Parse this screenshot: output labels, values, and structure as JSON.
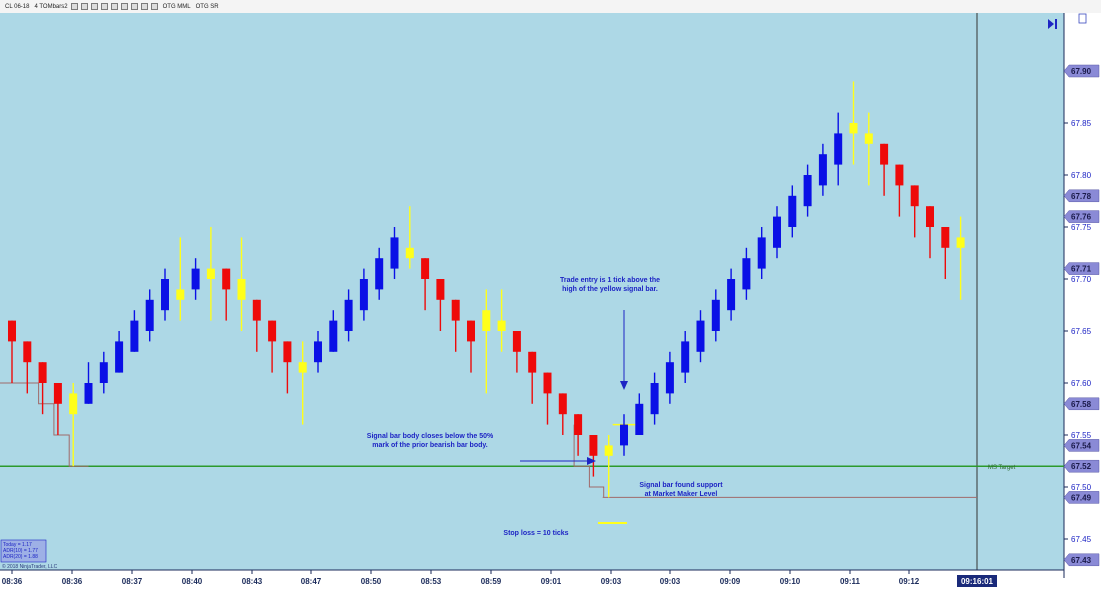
{
  "toolbar": {
    "instrument": "CL 06-18",
    "bar_type": "4 TOMbars2",
    "buttons": [
      "OTG MML",
      "OTG SR"
    ]
  },
  "chart_data": {
    "type": "candlestick",
    "title": "",
    "x_labels": [
      "08:36",
      "08:36",
      "08:37",
      "08:40",
      "08:43",
      "08:47",
      "08:50",
      "08:53",
      "08:59",
      "09:01",
      "09:03",
      "09:03",
      "09:09",
      "09:10",
      "09:11",
      "09:12"
    ],
    "current_time": "09:16:01",
    "ylim": [
      67.42,
      67.95
    ],
    "y_ticks": [
      "67.45",
      "67.50",
      "67.55",
      "67.60",
      "67.65",
      "67.70",
      "67.75",
      "67.80",
      "67.85",
      "67.90"
    ],
    "price_markers": [
      "67.90",
      "67.78",
      "67.76",
      "67.71",
      "67.58",
      "67.54",
      "67.52",
      "67.49",
      "67.43"
    ],
    "colors": {
      "bull": "#0a10e6",
      "bear": "#ee0a0a",
      "signal": "#ffff1a",
      "background": "#add8e6",
      "mm_line": "#2c9a2c",
      "stop_line": "#a06a6a",
      "label_bg": "#8a8ad6"
    },
    "candles": [
      {
        "o": 67.66,
        "h": 67.66,
        "l": 67.6,
        "c": 67.64,
        "t": "bear"
      },
      {
        "o": 67.64,
        "h": 67.64,
        "l": 67.59,
        "c": 67.62,
        "t": "bear"
      },
      {
        "o": 67.62,
        "h": 67.62,
        "l": 67.57,
        "c": 67.6,
        "t": "bear"
      },
      {
        "o": 67.6,
        "h": 67.6,
        "l": 67.55,
        "c": 67.58,
        "t": "bear"
      },
      {
        "o": 67.57,
        "h": 67.6,
        "l": 67.52,
        "c": 67.59,
        "t": "sig"
      },
      {
        "o": 67.58,
        "h": 67.62,
        "l": 67.58,
        "c": 67.6,
        "t": "bull"
      },
      {
        "o": 67.6,
        "h": 67.63,
        "l": 67.59,
        "c": 67.62,
        "t": "bull"
      },
      {
        "o": 67.61,
        "h": 67.65,
        "l": 67.61,
        "c": 67.64,
        "t": "bull"
      },
      {
        "o": 67.63,
        "h": 67.67,
        "l": 67.63,
        "c": 67.66,
        "t": "bull"
      },
      {
        "o": 67.65,
        "h": 67.69,
        "l": 67.64,
        "c": 67.68,
        "t": "bull"
      },
      {
        "o": 67.67,
        "h": 67.71,
        "l": 67.66,
        "c": 67.7,
        "t": "bull"
      },
      {
        "o": 67.68,
        "h": 67.74,
        "l": 67.66,
        "c": 67.69,
        "t": "sig"
      },
      {
        "o": 67.69,
        "h": 67.72,
        "l": 67.68,
        "c": 67.71,
        "t": "bull"
      },
      {
        "o": 67.7,
        "h": 67.75,
        "l": 67.66,
        "c": 67.71,
        "t": "sig"
      },
      {
        "o": 67.71,
        "h": 67.71,
        "l": 67.66,
        "c": 67.69,
        "t": "bear"
      },
      {
        "o": 67.7,
        "h": 67.74,
        "l": 67.65,
        "c": 67.68,
        "t": "sig"
      },
      {
        "o": 67.68,
        "h": 67.68,
        "l": 67.63,
        "c": 67.66,
        "t": "bear"
      },
      {
        "o": 67.66,
        "h": 67.66,
        "l": 67.61,
        "c": 67.64,
        "t": "bear"
      },
      {
        "o": 67.64,
        "h": 67.64,
        "l": 67.59,
        "c": 67.62,
        "t": "bear"
      },
      {
        "o": 67.62,
        "h": 67.64,
        "l": 67.56,
        "c": 67.61,
        "t": "sig"
      },
      {
        "o": 67.62,
        "h": 67.65,
        "l": 67.61,
        "c": 67.64,
        "t": "bull"
      },
      {
        "o": 67.63,
        "h": 67.67,
        "l": 67.63,
        "c": 67.66,
        "t": "bull"
      },
      {
        "o": 67.65,
        "h": 67.69,
        "l": 67.64,
        "c": 67.68,
        "t": "bull"
      },
      {
        "o": 67.67,
        "h": 67.71,
        "l": 67.66,
        "c": 67.7,
        "t": "bull"
      },
      {
        "o": 67.69,
        "h": 67.73,
        "l": 67.68,
        "c": 67.72,
        "t": "bull"
      },
      {
        "o": 67.71,
        "h": 67.75,
        "l": 67.7,
        "c": 67.74,
        "t": "bull"
      },
      {
        "o": 67.73,
        "h": 67.77,
        "l": 67.71,
        "c": 67.72,
        "t": "sig"
      },
      {
        "o": 67.72,
        "h": 67.72,
        "l": 67.67,
        "c": 67.7,
        "t": "bear"
      },
      {
        "o": 67.7,
        "h": 67.7,
        "l": 67.65,
        "c": 67.68,
        "t": "bear"
      },
      {
        "o": 67.68,
        "h": 67.68,
        "l": 67.63,
        "c": 67.66,
        "t": "bear"
      },
      {
        "o": 67.66,
        "h": 67.66,
        "l": 67.61,
        "c": 67.64,
        "t": "bear"
      },
      {
        "o": 67.67,
        "h": 67.69,
        "l": 67.59,
        "c": 67.65,
        "t": "sig"
      },
      {
        "o": 67.65,
        "h": 67.69,
        "l": 67.63,
        "c": 67.66,
        "t": "sig"
      },
      {
        "o": 67.65,
        "h": 67.65,
        "l": 67.61,
        "c": 67.63,
        "t": "bear"
      },
      {
        "o": 67.63,
        "h": 67.63,
        "l": 67.58,
        "c": 67.61,
        "t": "bear"
      },
      {
        "o": 67.61,
        "h": 67.61,
        "l": 67.56,
        "c": 67.59,
        "t": "bear"
      },
      {
        "o": 67.59,
        "h": 67.59,
        "l": 67.55,
        "c": 67.57,
        "t": "bear"
      },
      {
        "o": 67.57,
        "h": 67.57,
        "l": 67.53,
        "c": 67.55,
        "t": "bear"
      },
      {
        "o": 67.55,
        "h": 67.55,
        "l": 67.51,
        "c": 67.53,
        "t": "bear"
      },
      {
        "o": 67.54,
        "h": 67.55,
        "l": 67.49,
        "c": 67.53,
        "t": "sig"
      },
      {
        "o": 67.54,
        "h": 67.57,
        "l": 67.53,
        "c": 67.56,
        "t": "bull"
      },
      {
        "o": 67.55,
        "h": 67.59,
        "l": 67.55,
        "c": 67.58,
        "t": "bull"
      },
      {
        "o": 67.57,
        "h": 67.61,
        "l": 67.56,
        "c": 67.6,
        "t": "bull"
      },
      {
        "o": 67.59,
        "h": 67.63,
        "l": 67.58,
        "c": 67.62,
        "t": "bull"
      },
      {
        "o": 67.61,
        "h": 67.65,
        "l": 67.6,
        "c": 67.64,
        "t": "bull"
      },
      {
        "o": 67.63,
        "h": 67.67,
        "l": 67.62,
        "c": 67.66,
        "t": "bull"
      },
      {
        "o": 67.65,
        "h": 67.69,
        "l": 67.64,
        "c": 67.68,
        "t": "bull"
      },
      {
        "o": 67.67,
        "h": 67.71,
        "l": 67.66,
        "c": 67.7,
        "t": "bull"
      },
      {
        "o": 67.69,
        "h": 67.73,
        "l": 67.68,
        "c": 67.72,
        "t": "bull"
      },
      {
        "o": 67.71,
        "h": 67.75,
        "l": 67.7,
        "c": 67.74,
        "t": "bull"
      },
      {
        "o": 67.73,
        "h": 67.77,
        "l": 67.72,
        "c": 67.76,
        "t": "bull"
      },
      {
        "o": 67.75,
        "h": 67.79,
        "l": 67.74,
        "c": 67.78,
        "t": "bull"
      },
      {
        "o": 67.77,
        "h": 67.81,
        "l": 67.76,
        "c": 67.8,
        "t": "bull"
      },
      {
        "o": 67.79,
        "h": 67.83,
        "l": 67.78,
        "c": 67.82,
        "t": "bull"
      },
      {
        "o": 67.81,
        "h": 67.86,
        "l": 67.79,
        "c": 67.84,
        "t": "bull"
      },
      {
        "o": 67.85,
        "h": 67.89,
        "l": 67.81,
        "c": 67.84,
        "t": "sig"
      },
      {
        "o": 67.84,
        "h": 67.86,
        "l": 67.79,
        "c": 67.83,
        "t": "sig"
      },
      {
        "o": 67.83,
        "h": 67.83,
        "l": 67.78,
        "c": 67.81,
        "t": "bear"
      },
      {
        "o": 67.81,
        "h": 67.81,
        "l": 67.76,
        "c": 67.79,
        "t": "bear"
      },
      {
        "o": 67.79,
        "h": 67.79,
        "l": 67.74,
        "c": 67.77,
        "t": "bear"
      },
      {
        "o": 67.77,
        "h": 67.77,
        "l": 67.72,
        "c": 67.75,
        "t": "bear"
      },
      {
        "o": 67.75,
        "h": 67.75,
        "l": 67.7,
        "c": 67.73,
        "t": "bear"
      },
      {
        "o": 67.73,
        "h": 67.76,
        "l": 67.68,
        "c": 67.74,
        "t": "sig"
      }
    ],
    "mm_level": 67.52,
    "mm_label": "MS Target",
    "stop_level": 67.49,
    "annotations": [
      {
        "id": "entry",
        "lines": [
          "Trade entry is 1 tick above the",
          "high of the yellow signal bar."
        ]
      },
      {
        "id": "signal",
        "lines": [
          "Signal bar body closes below the 50%",
          "mark of the prior bearish bar body."
        ]
      },
      {
        "id": "support",
        "lines": [
          "Signal bar found support",
          "at Market Maker Level"
        ]
      },
      {
        "id": "stop",
        "lines": [
          "Stop loss = 10 ticks"
        ]
      }
    ],
    "stats": [
      "Today = 1.17",
      "ADR(10) = 1.77",
      "ADR(20) = 1.88"
    ],
    "copyright": "© 2018 NinjaTrader, LLC"
  }
}
